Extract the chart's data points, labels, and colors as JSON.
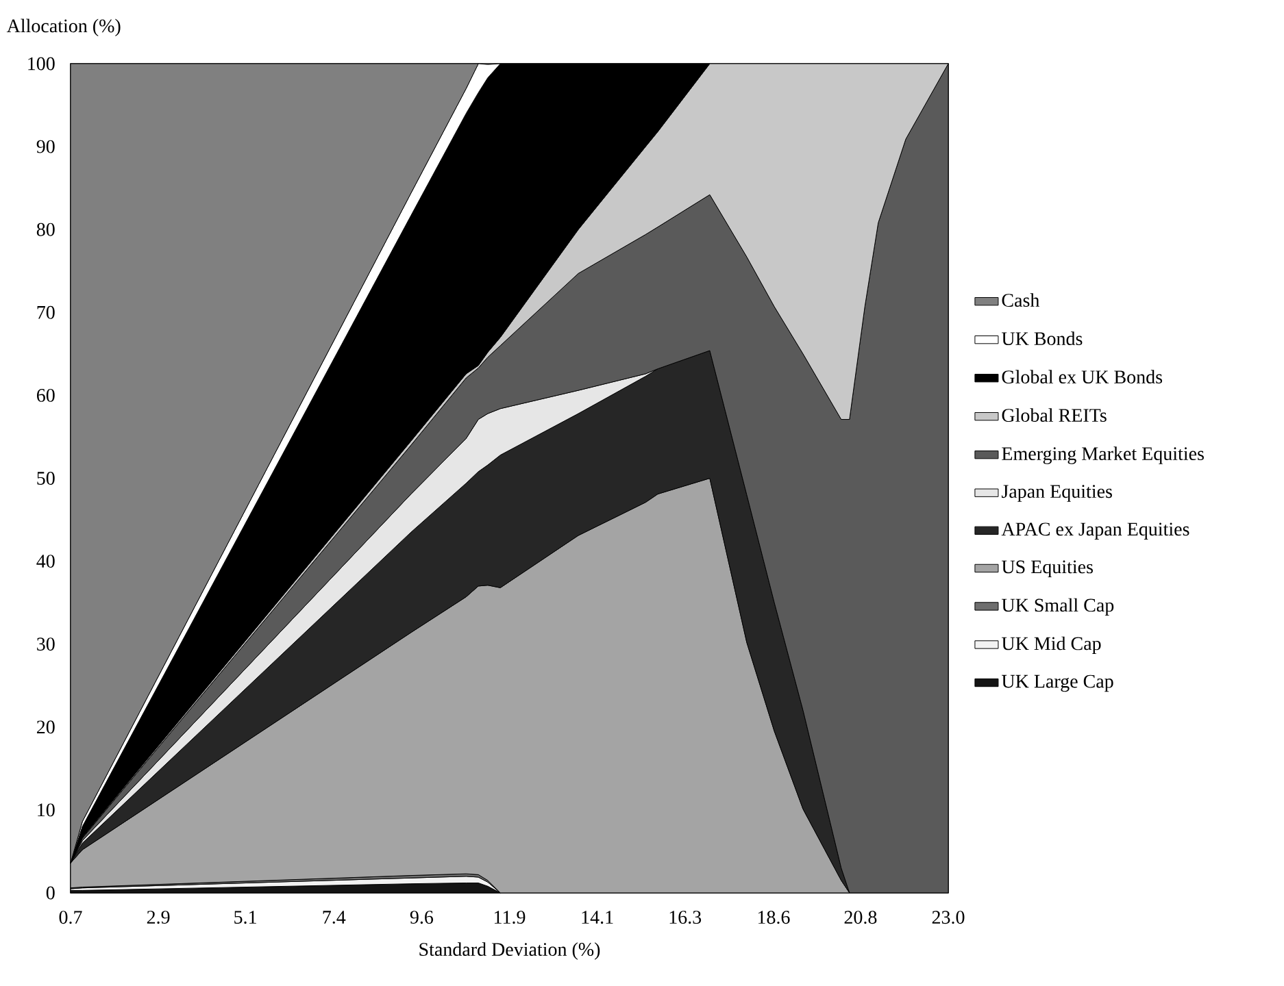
{
  "chart_data": {
    "type": "area",
    "stacked": true,
    "xlabel": "Standard Deviation (%)",
    "ylabel": "Allocation (%)",
    "x": [
      0.7,
      1.0,
      9.35,
      10.75,
      11.06,
      11.3,
      11.62,
      13.6,
      15.31,
      15.62,
      16.94,
      17.88,
      18.58,
      19.31,
      20.28,
      20.49,
      20.88,
      21.22,
      21.92,
      23.0
    ],
    "series": [
      {
        "name": "UK Large Cap",
        "color": "#141414",
        "values": [
          0.3,
          0.3,
          1.1,
          1.2,
          1.2,
          0.8,
          0,
          null,
          null,
          null,
          null,
          null,
          null,
          null,
          null,
          null,
          null,
          null,
          null,
          null
        ]
      },
      {
        "name": "UK Mid Cap",
        "color": "#f2f2f2",
        "values": [
          0.2,
          0.3,
          0.7,
          0.8,
          0.7,
          0.5,
          0,
          null,
          null,
          null,
          null,
          null,
          null,
          null,
          null,
          null,
          null,
          null,
          null,
          null
        ]
      },
      {
        "name": "UK Small Cap",
        "color": "#6e6e6e",
        "values": [
          0.1,
          0.1,
          0.3,
          0.3,
          0.3,
          0.2,
          0,
          null,
          null,
          null,
          null,
          null,
          null,
          null,
          null,
          null,
          null,
          null,
          null,
          null
        ]
      },
      {
        "name": "US Equities",
        "color": "#a4a4a4",
        "values": [
          3.0,
          4.5,
          29.3,
          33.4,
          34.8,
          35.6,
          36.8,
          43.1,
          47.1,
          48.1,
          50.0,
          30.2,
          19.5,
          10.1,
          1.5,
          0,
          null,
          null,
          null,
          null
        ]
      },
      {
        "name": "APAC ex Japan Equities",
        "color": "#262626",
        "values": [
          0,
          0.8,
          12.1,
          13.7,
          13.8,
          14.5,
          16.0,
          14.7,
          15.2,
          15.1,
          15.4,
          17.8,
          15.5,
          11.9,
          1.5,
          0,
          null,
          null,
          null,
          null
        ]
      },
      {
        "name": "Japan Equities",
        "color": "#e6e6e6",
        "values": [
          0,
          0.3,
          4.6,
          5.4,
          6.3,
          6.2,
          5.6,
          2.8,
          0.3,
          0,
          null,
          null,
          null,
          null,
          null,
          null,
          null,
          null,
          null,
          null
        ]
      },
      {
        "name": "Emerging Market Equities",
        "color": "#5a5a5a",
        "values": [
          0,
          0.3,
          5.9,
          7.3,
          6.2,
          6.8,
          7.6,
          14.1,
          16.8,
          17.1,
          18.8,
          28.7,
          35.7,
          43.0,
          54.1,
          57.1,
          70.7,
          80.8,
          90.9,
          100
        ]
      },
      {
        "name": "Global REITs",
        "color": "#c8c8c8",
        "values": [
          0,
          0.1,
          0.5,
          0.5,
          0.3,
          0.6,
          1.0,
          5.3,
          10.6,
          11.5,
          15.8,
          23.3,
          29.3,
          35.0,
          42.9,
          42.9,
          29.3,
          19.2,
          9.1,
          0
        ]
      },
      {
        "name": "Global ex UK Bonds",
        "color": "#000000",
        "values": [
          0,
          1.3,
          27.2,
          31.4,
          32.9,
          33.1,
          33.0,
          20.0,
          10.0,
          8.2,
          0,
          null,
          null,
          null,
          null,
          null,
          null,
          null,
          null,
          null
        ]
      },
      {
        "name": "UK Bonds",
        "color": "#ffffff",
        "values": [
          0,
          0.6,
          2.7,
          3.0,
          3.5,
          1.6,
          0,
          null,
          null,
          null,
          null,
          null,
          null,
          null,
          null,
          null,
          null,
          null,
          null,
          null
        ]
      },
      {
        "name": "Cash",
        "color": "#808080",
        "values": [
          96.4,
          91.4,
          15.6,
          3.0,
          0,
          null,
          null,
          null,
          null,
          null,
          null,
          null,
          null,
          null,
          null,
          null,
          null,
          null,
          null,
          null
        ]
      }
    ],
    "xlim": [
      0.7,
      23.0
    ],
    "xticks": [
      {
        "value": 0.7,
        "label": "0.7"
      },
      {
        "value": 2.93,
        "label": "2.9"
      },
      {
        "value": 5.14,
        "label": "5.1"
      },
      {
        "value": 7.39,
        "label": "7.4"
      },
      {
        "value": 9.62,
        "label": "9.6"
      },
      {
        "value": 11.85,
        "label": "11.9"
      },
      {
        "value": 14.08,
        "label": "14.1"
      },
      {
        "value": 16.31,
        "label": "16.3"
      },
      {
        "value": 18.56,
        "label": "18.6"
      },
      {
        "value": 20.77,
        "label": "20.8"
      },
      {
        "value": 23.0,
        "label": "23.0"
      }
    ],
    "ylim": [
      0,
      100
    ],
    "yticks": [
      0,
      10,
      20,
      30,
      40,
      50,
      60,
      70,
      80,
      90,
      100
    ],
    "legend": "right"
  }
}
